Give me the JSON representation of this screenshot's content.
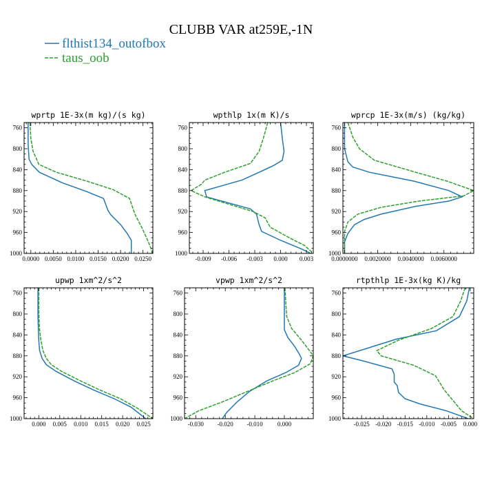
{
  "figure": {
    "title": "CLUBB VAR at259E,-1N",
    "legend": [
      {
        "name": "flthist134_outofbox",
        "color": "#1f77b4",
        "dash": "solid"
      },
      {
        "name": "taus_oob",
        "color": "#2ca02c",
        "dash": "dashed"
      }
    ],
    "legend_position": "top-left"
  },
  "chart_data": [
    {
      "type": "line",
      "title": "wprtp  1E-3x(m kg)/(s kg)",
      "xlim": [
        -0.0015,
        0.0272
      ],
      "ylim": [
        1000,
        750
      ],
      "grid": false,
      "yticks": [
        760,
        800,
        840,
        880,
        920,
        960,
        1000
      ],
      "xticks": [
        {
          "v": 0.0,
          "label": "0.0000"
        },
        {
          "v": 0.005,
          "label": "0.0050"
        },
        {
          "v": 0.01,
          "label": "0.0100"
        },
        {
          "v": 0.015,
          "label": "0.0150"
        },
        {
          "v": 0.02,
          "label": "0.0200"
        },
        {
          "v": 0.025,
          "label": "0.0250"
        }
      ],
      "series": [
        {
          "name": "flthist134_outofbox",
          "points": [
            [
              -0.0006,
              750
            ],
            [
              -0.0006,
              790
            ],
            [
              -0.0004,
              820
            ],
            [
              0.0002,
              830
            ],
            [
              0.0019,
              845
            ],
            [
              0.007,
              865
            ],
            [
              0.0125,
              882
            ],
            [
              0.0162,
              895
            ],
            [
              0.0172,
              918
            ],
            [
              0.0178,
              926
            ],
            [
              0.02,
              945
            ],
            [
              0.0215,
              962
            ],
            [
              0.0224,
              975
            ],
            [
              0.0224,
              1000
            ]
          ]
        },
        {
          "name": "taus_oob",
          "points": [
            [
              -0.0002,
              750
            ],
            [
              0.0,
              780
            ],
            [
              0.0005,
              805
            ],
            [
              0.0018,
              830
            ],
            [
              0.0057,
              845
            ],
            [
              0.0125,
              862
            ],
            [
              0.0183,
              878
            ],
            [
              0.022,
              895
            ],
            [
              0.0232,
              925
            ],
            [
              0.0247,
              950
            ],
            [
              0.0262,
              978
            ],
            [
              0.0272,
              1000
            ]
          ]
        }
      ]
    },
    {
      "type": "line",
      "title": "wpthlp  1x(m K)/s",
      "xlim": [
        -0.0106,
        0.0038
      ],
      "ylim": [
        1000,
        750
      ],
      "grid": false,
      "yticks": [
        760,
        800,
        840,
        880,
        920,
        960,
        1000
      ],
      "xticks": [
        {
          "v": -0.009,
          "label": "-0.009"
        },
        {
          "v": -0.006,
          "label": "-0.006"
        },
        {
          "v": -0.003,
          "label": "-0.003"
        },
        {
          "v": 0.0,
          "label": "0.000"
        },
        {
          "v": 0.003,
          "label": "0.003"
        }
      ],
      "series": [
        {
          "name": "flthist134_outofbox",
          "points": [
            [
              0.0,
              750
            ],
            [
              0.0002,
              780
            ],
            [
              0.0004,
              805
            ],
            [
              0.0002,
              822
            ],
            [
              -0.0008,
              832
            ],
            [
              -0.0025,
              845
            ],
            [
              -0.0045,
              860
            ],
            [
              -0.0088,
              880
            ],
            [
              -0.0086,
              892
            ],
            [
              -0.0035,
              915
            ],
            [
              -0.0028,
              925
            ],
            [
              -0.0025,
              945
            ],
            [
              -0.0022,
              958
            ],
            [
              0.0,
              975
            ],
            [
              0.0025,
              992
            ],
            [
              0.0035,
              1000
            ]
          ]
        },
        {
          "name": "taus_oob",
          "points": [
            [
              -0.0015,
              750
            ],
            [
              -0.002,
              780
            ],
            [
              -0.0025,
              805
            ],
            [
              -0.0035,
              828
            ],
            [
              -0.0065,
              845
            ],
            [
              -0.0088,
              860
            ],
            [
              -0.0092,
              868
            ],
            [
              -0.0104,
              880
            ],
            [
              -0.0088,
              892
            ],
            [
              -0.0062,
              905
            ],
            [
              -0.0032,
              920
            ],
            [
              -0.0018,
              932
            ],
            [
              -0.0012,
              950
            ],
            [
              0.001,
              970
            ],
            [
              0.0028,
              985
            ],
            [
              0.0038,
              1000
            ]
          ]
        }
      ]
    },
    {
      "type": "line",
      "title": "wprcp  1E-3x(m/s) (kg/kg)",
      "xlim": [
        -0.0001,
        0.0078
      ],
      "ylim": [
        1000,
        750
      ],
      "grid": false,
      "yticks": [
        760,
        800,
        840,
        880,
        920,
        960,
        1000
      ],
      "xticks": [
        {
          "v": 0.0,
          "label": "0.0000000"
        },
        {
          "v": 0.002,
          "label": "0.0020000"
        },
        {
          "v": 0.004,
          "label": "0.0040000"
        },
        {
          "v": 0.006,
          "label": "0.0060000"
        }
      ],
      "series": [
        {
          "name": "flthist134_outofbox",
          "points": [
            [
              0.0,
              750
            ],
            [
              0.0,
              800
            ],
            [
              0.0002,
              825
            ],
            [
              0.0005,
              835
            ],
            [
              0.0015,
              845
            ],
            [
              0.0042,
              862
            ],
            [
              0.0063,
              880
            ],
            [
              0.0071,
              892
            ],
            [
              0.0063,
              900
            ],
            [
              0.0043,
              910
            ],
            [
              0.0022,
              925
            ],
            [
              0.0012,
              935
            ],
            [
              0.0006,
              945
            ],
            [
              0.0002,
              962
            ],
            [
              0.0,
              978
            ],
            [
              0.0,
              1000
            ]
          ]
        },
        {
          "name": "taus_oob",
          "points": [
            [
              0.0002,
              750
            ],
            [
              0.0005,
              778
            ],
            [
              0.0009,
              800
            ],
            [
              0.0018,
              822
            ],
            [
              0.0043,
              845
            ],
            [
              0.0062,
              862
            ],
            [
              0.0078,
              880
            ],
            [
              0.0072,
              890
            ],
            [
              0.0045,
              900
            ],
            [
              0.0022,
              912
            ],
            [
              0.0008,
              925
            ],
            [
              0.0002,
              940
            ],
            [
              0.0,
              958
            ],
            [
              0.0,
              1000
            ]
          ]
        }
      ]
    },
    {
      "type": "line",
      "title": "upwp  1xm^2/s^2",
      "xlim": [
        -0.0035,
        0.0272
      ],
      "ylim": [
        1000,
        750
      ],
      "grid": false,
      "yticks": [
        760,
        800,
        840,
        880,
        920,
        960,
        1000
      ],
      "xticks": [
        {
          "v": 0.0,
          "label": "0.000"
        },
        {
          "v": 0.005,
          "label": "0.005"
        },
        {
          "v": 0.01,
          "label": "0.010"
        },
        {
          "v": 0.015,
          "label": "0.015"
        },
        {
          "v": 0.02,
          "label": "0.020"
        },
        {
          "v": 0.025,
          "label": "0.025"
        }
      ],
      "series": [
        {
          "name": "flthist134_outofbox",
          "points": [
            [
              -0.0002,
              750
            ],
            [
              -0.0002,
              800
            ],
            [
              -0.0001,
              830
            ],
            [
              0.0,
              850
            ],
            [
              0.0002,
              870
            ],
            [
              0.0008,
              885
            ],
            [
              0.0018,
              897
            ],
            [
              0.0042,
              910
            ],
            [
              0.0085,
              928
            ],
            [
              0.013,
              945
            ],
            [
              0.018,
              962
            ],
            [
              0.022,
              978
            ],
            [
              0.0255,
              1000
            ]
          ]
        },
        {
          "name": "taus_oob",
          "points": [
            [
              0.0,
              750
            ],
            [
              0.0,
              800
            ],
            [
              0.0002,
              830
            ],
            [
              0.0005,
              850
            ],
            [
              0.001,
              870
            ],
            [
              0.0018,
              885
            ],
            [
              0.003,
              897
            ],
            [
              0.0055,
              910
            ],
            [
              0.01,
              928
            ],
            [
              0.0145,
              945
            ],
            [
              0.0195,
              962
            ],
            [
              0.0235,
              980
            ],
            [
              0.0272,
              1000
            ]
          ]
        }
      ]
    },
    {
      "type": "line",
      "title": "vpwp  1xm^2/s^2",
      "xlim": [
        -0.0338,
        0.0098
      ],
      "ylim": [
        1000,
        750
      ],
      "grid": false,
      "yticks": [
        760,
        800,
        840,
        880,
        920,
        960,
        1000
      ],
      "xticks": [
        {
          "v": -0.03,
          "label": "-0.030"
        },
        {
          "v": -0.02,
          "label": "-0.020"
        },
        {
          "v": -0.01,
          "label": "-0.010"
        },
        {
          "v": 0.0,
          "label": "0.000"
        }
      ],
      "series": [
        {
          "name": "flthist134_outofbox",
          "points": [
            [
              0.0,
              750
            ],
            [
              0.0,
              800
            ],
            [
              0.0,
              830
            ],
            [
              0.0012,
              845
            ],
            [
              0.0035,
              862
            ],
            [
              0.0052,
              878
            ],
            [
              0.0058,
              885
            ],
            [
              0.0048,
              898
            ],
            [
              0.0005,
              912
            ],
            [
              -0.006,
              928
            ],
            [
              -0.0118,
              948
            ],
            [
              -0.016,
              968
            ],
            [
              -0.0195,
              988
            ],
            [
              -0.021,
              1000
            ]
          ]
        },
        {
          "name": "taus_oob",
          "points": [
            [
              0.0002,
              750
            ],
            [
              0.0005,
              780
            ],
            [
              0.0008,
              805
            ],
            [
              0.0025,
              828
            ],
            [
              0.0058,
              850
            ],
            [
              0.0085,
              870
            ],
            [
              0.0098,
              880
            ],
            [
              0.0088,
              895
            ],
            [
              0.0035,
              912
            ],
            [
              -0.004,
              928
            ],
            [
              -0.0125,
              948
            ],
            [
              -0.021,
              968
            ],
            [
              -0.029,
              985
            ],
            [
              -0.0338,
              1000
            ]
          ]
        }
      ]
    },
    {
      "type": "line",
      "title": "rtpthlp  1E-3x(kg K)/kg",
      "xlim": [
        -0.0293,
        0.0008
      ],
      "ylim": [
        1000,
        750
      ],
      "grid": false,
      "yticks": [
        760,
        800,
        840,
        880,
        920,
        960,
        1000
      ],
      "xticks": [
        {
          "v": -0.025,
          "label": "-0.025"
        },
        {
          "v": -0.02,
          "label": "-0.020"
        },
        {
          "v": -0.015,
          "label": "-0.015"
        },
        {
          "v": -0.01,
          "label": "-0.010"
        },
        {
          "v": -0.005,
          "label": "-0.005"
        },
        {
          "v": 0.0,
          "label": "0.000"
        }
      ],
      "series": [
        {
          "name": "flthist134_outofbox",
          "points": [
            [
              -0.0002,
              750
            ],
            [
              -0.0008,
              775
            ],
            [
              -0.0025,
              805
            ],
            [
              -0.0078,
              832
            ],
            [
              -0.017,
              848
            ],
            [
              -0.0235,
              865
            ],
            [
              -0.0293,
              880
            ],
            [
              -0.0245,
              890
            ],
            [
              -0.018,
              905
            ],
            [
              -0.0175,
              915
            ],
            [
              -0.0175,
              930
            ],
            [
              -0.0168,
              937
            ],
            [
              -0.0165,
              950
            ],
            [
              -0.015,
              962
            ],
            [
              -0.0115,
              972
            ],
            [
              -0.0055,
              985
            ],
            [
              -0.0005,
              1000
            ]
          ]
        },
        {
          "name": "taus_oob",
          "points": [
            [
              -0.0012,
              750
            ],
            [
              -0.0022,
              775
            ],
            [
              -0.004,
              805
            ],
            [
              -0.009,
              828
            ],
            [
              -0.0165,
              850
            ],
            [
              -0.0215,
              870
            ],
            [
              -0.0205,
              880
            ],
            [
              -0.013,
              898
            ],
            [
              -0.008,
              918
            ],
            [
              -0.006,
              945
            ],
            [
              -0.004,
              965
            ],
            [
              -0.002,
              985
            ],
            [
              0.0008,
              1000
            ]
          ]
        }
      ]
    }
  ]
}
